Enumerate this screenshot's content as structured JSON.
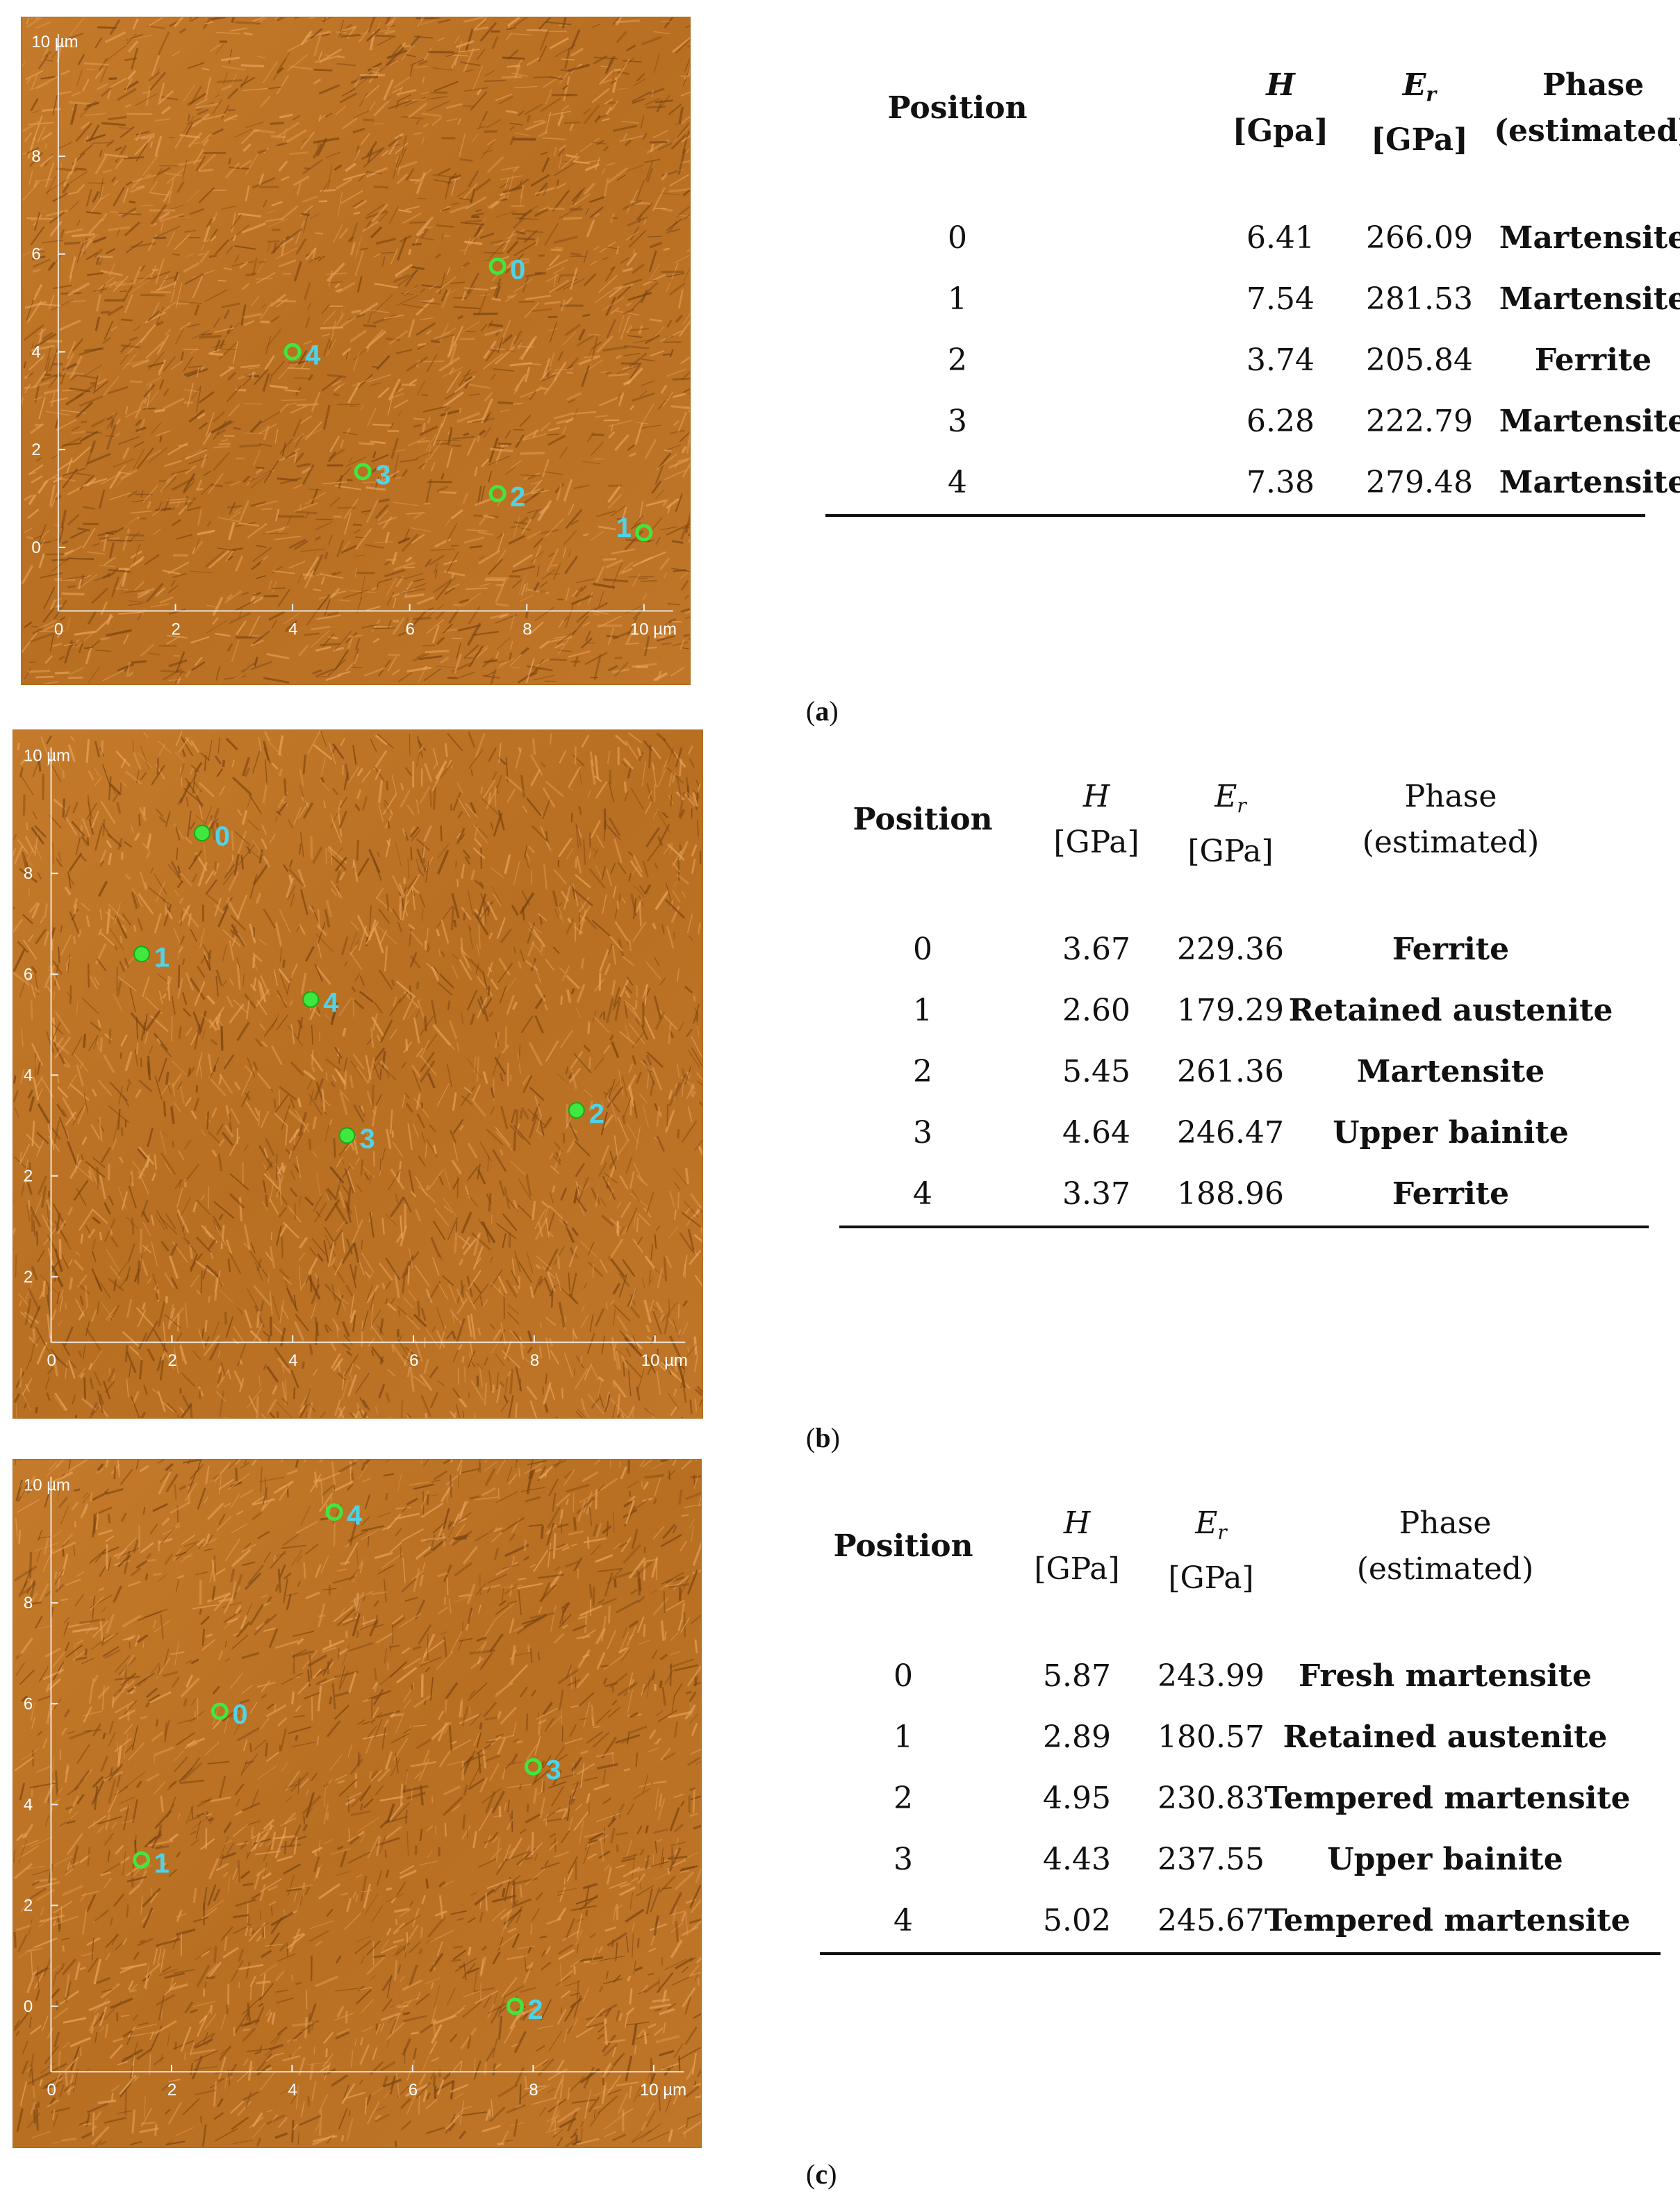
{
  "panels": [
    {
      "id": "a",
      "caption_letter": "a",
      "image": {
        "top_unit": "10 µm",
        "x_ticks": [
          "0",
          "2",
          "4",
          "6",
          "8",
          "10 µm"
        ],
        "y_ticks": [
          "8",
          "6",
          "4",
          "2",
          "0"
        ],
        "markers": [
          {
            "label": "0",
            "x_um": 7.5,
            "y_um": 5.75,
            "style": "ring"
          },
          {
            "label": "1",
            "x_um": 10.0,
            "y_um": 0.3,
            "style": "ring"
          },
          {
            "label": "2",
            "x_um": 7.5,
            "y_um": 1.1,
            "style": "ring"
          },
          {
            "label": "3",
            "x_um": 5.2,
            "y_um": 1.55,
            "style": "ring"
          },
          {
            "label": "4",
            "x_um": 4.0,
            "y_um": 4.0,
            "style": "ring"
          }
        ]
      },
      "table": {
        "headers": {
          "position": "Position",
          "h_sym": "H",
          "h_unit": "[Gpa]",
          "e_sym": "E",
          "e_sub": "r",
          "e_unit": "[GPa]",
          "phase_l1": "Phase",
          "phase_l2": "(estimated)"
        },
        "rows": [
          {
            "pos": "0",
            "h": "6.41",
            "e": "266.09",
            "phase": "Martensite"
          },
          {
            "pos": "1",
            "h": "7.54",
            "e": "281.53",
            "phase": "Martensite"
          },
          {
            "pos": "2",
            "h": "3.74",
            "e": "205.84",
            "phase": "Ferrite"
          },
          {
            "pos": "3",
            "h": "6.28",
            "e": "222.79",
            "phase": "Martensite"
          },
          {
            "pos": "4",
            "h": "7.38",
            "e": "279.48",
            "phase": "Martensite"
          }
        ]
      }
    },
    {
      "id": "b",
      "caption_letter": "b",
      "image": {
        "top_unit": "10 µm",
        "x_ticks": [
          "0",
          "2",
          "4",
          "6",
          "8",
          "10 µm"
        ],
        "y_ticks": [
          "8",
          "6",
          "4",
          "2",
          "2"
        ],
        "markers": [
          {
            "label": "0",
            "x_um": 2.5,
            "y_um": 8.8,
            "style": "dot"
          },
          {
            "label": "1",
            "x_um": 1.5,
            "y_um": 6.4,
            "style": "dot"
          },
          {
            "label": "2",
            "x_um": 8.7,
            "y_um": 3.3,
            "style": "dot"
          },
          {
            "label": "3",
            "x_um": 4.9,
            "y_um": 2.8,
            "style": "dot"
          },
          {
            "label": "4",
            "x_um": 4.3,
            "y_um": 5.5,
            "style": "dot"
          }
        ]
      },
      "table": {
        "headers": {
          "position": "Position",
          "h_sym": "H",
          "h_unit": "[GPa]",
          "e_sym": "E",
          "e_sub": "r",
          "e_unit": "[GPa]",
          "phase_l1": "Phase",
          "phase_l2": "(estimated)"
        },
        "rows": [
          {
            "pos": "0",
            "h": "3.67",
            "e": "229.36",
            "phase": "Ferrite"
          },
          {
            "pos": "1",
            "h": "2.60",
            "e": "179.29",
            "phase": "Retained austenite"
          },
          {
            "pos": "2",
            "h": "5.45",
            "e": "261.36",
            "phase": "Martensite"
          },
          {
            "pos": "3",
            "h": "4.64",
            "e": "246.47",
            "phase": "Upper bainite"
          },
          {
            "pos": "4",
            "h": "3.37",
            "e": "188.96",
            "phase": "Ferrite"
          }
        ]
      }
    },
    {
      "id": "c",
      "caption_letter": "c",
      "image": {
        "top_unit": "10 µm",
        "x_ticks": [
          "0",
          "2",
          "4",
          "6",
          "8",
          "10 µm"
        ],
        "y_ticks": [
          "8",
          "6",
          "4",
          "2",
          "0"
        ],
        "markers": [
          {
            "label": "0",
            "x_um": 2.8,
            "y_um": 5.85,
            "style": "ring"
          },
          {
            "label": "1",
            "x_um": 1.5,
            "y_um": 2.9,
            "style": "ring"
          },
          {
            "label": "2",
            "x_um": 7.7,
            "y_um": 0.0,
            "style": "ring"
          },
          {
            "label": "3",
            "x_um": 8.0,
            "y_um": 4.75,
            "style": "ring"
          },
          {
            "label": "4",
            "x_um": 4.7,
            "y_um": 9.8,
            "style": "ring"
          }
        ]
      },
      "table": {
        "headers": {
          "position": "Position",
          "h_sym": "H",
          "h_unit": "[GPa]",
          "e_sym": "E",
          "e_sub": "r",
          "e_unit": "[GPa]",
          "phase_l1": "Phase",
          "phase_l2": "(estimated)"
        },
        "rows": [
          {
            "pos": "0",
            "h": "5.87",
            "e": "243.99",
            "phase": "Fresh martensite"
          },
          {
            "pos": "1",
            "h": "2.89",
            "e": "180.57",
            "phase": "Retained austenite"
          },
          {
            "pos": "2",
            "h": "4.95",
            "e": "230.83",
            "phase": "Tempered martensite"
          },
          {
            "pos": "3",
            "h": "4.43",
            "e": "237.55",
            "phase": "Upper bainite"
          },
          {
            "pos": "4",
            "h": "5.02",
            "e": "245.67",
            "phase": "Tempered martensite"
          }
        ]
      }
    }
  ]
}
